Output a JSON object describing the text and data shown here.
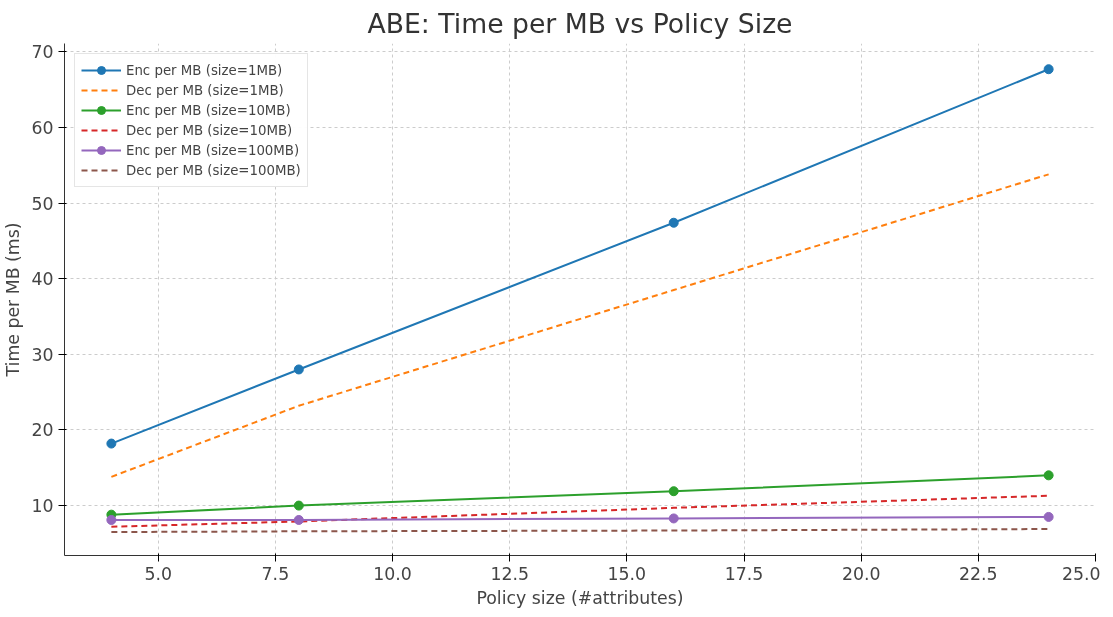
{
  "chart_data": {
    "type": "line",
    "title": "ABE: Time per MB vs Policy Size",
    "xlabel": "Policy size (#attributes)",
    "ylabel": "Time per MB (ms)",
    "x": [
      4,
      8,
      16,
      24
    ],
    "xlim": [
      3,
      25
    ],
    "xticks": [
      {
        "value": 5,
        "label": "5.0"
      },
      {
        "value": 7.5,
        "label": "7.5"
      },
      {
        "value": 10,
        "label": "10.0"
      },
      {
        "value": 12.5,
        "label": "12.5"
      },
      {
        "value": 15,
        "label": "15.0"
      },
      {
        "value": 17.5,
        "label": "17.5"
      },
      {
        "value": 20,
        "label": "20.0"
      },
      {
        "value": 22.5,
        "label": "22.5"
      },
      {
        "value": 25,
        "label": "25.0"
      }
    ],
    "ylim": [
      3.4,
      71.1
    ],
    "yticks": [
      10,
      20,
      30,
      40,
      50,
      60,
      70
    ],
    "grid": true,
    "legend": "top left",
    "series": [
      {
        "name": "Enc per MB (size=1MB)",
        "color": "#1f77b4",
        "values": [
          18.2,
          28,
          47.4,
          67.7
        ],
        "marker": "circle",
        "line_style": "solid"
      },
      {
        "name": "Dec per MB (size=1MB)",
        "color": "#ff7f0e",
        "values": [
          13.8,
          23.2,
          38.5,
          53.8
        ],
        "marker": "none",
        "line_style": "dashed"
      },
      {
        "name": "Enc per MB (size=10MB)",
        "color": "#2ca02c",
        "values": [
          8.8,
          10.0,
          11.9,
          14.0
        ],
        "marker": "circle",
        "line_style": "solid"
      },
      {
        "name": "Dec per MB (size=10MB)",
        "color": "#d62728",
        "values": [
          7.2,
          7.9,
          9.7,
          11.3
        ],
        "marker": "none",
        "line_style": "dashed"
      },
      {
        "name": "Enc per MB (size=100MB)",
        "color": "#9467bd",
        "values": [
          8.1,
          8.1,
          8.3,
          8.5
        ],
        "marker": "circle",
        "line_style": "solid"
      },
      {
        "name": "Dec per MB (size=100MB)",
        "color": "#8c564b",
        "values": [
          6.5,
          6.6,
          6.7,
          6.9
        ],
        "marker": "none",
        "line_style": "dashed"
      }
    ]
  }
}
